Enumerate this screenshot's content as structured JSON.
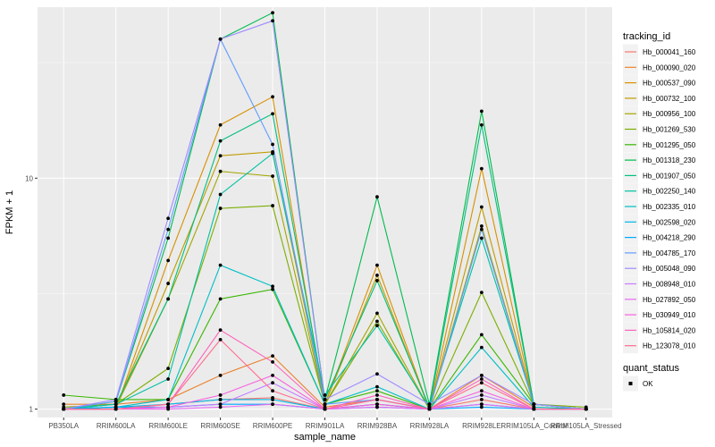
{
  "chart_data": {
    "type": "line",
    "title": "",
    "xlabel": "sample_name",
    "ylabel": "FPKM + 1",
    "y_scale": "log10",
    "ylim": [
      0.92,
      55
    ],
    "y_ticks": [
      1,
      10
    ],
    "y_tick_labels": [
      "1",
      "10"
    ],
    "grid": true,
    "panel_background": "#ebebeb",
    "legend_position": "right",
    "categories": [
      "PB350LA",
      "RRIM600LA",
      "RRIM600LE",
      "RRIM600SE",
      "RRIM600PE",
      "RRIM901LA",
      "RRIM928BA",
      "RRIM928LA",
      "RRIM928LE",
      "RRIM105LA_Control",
      "RRIM105LA_Stressed"
    ],
    "legend": {
      "title": "tracking_id",
      "items": [
        "Hb_000041_160",
        "Hb_000090_020",
        "Hb_000537_090",
        "Hb_000732_100",
        "Hb_000956_100",
        "Hb_001269_530",
        "Hb_001295_050",
        "Hb_001318_230",
        "Hb_001907_050",
        "Hb_002250_140",
        "Hb_002335_010",
        "Hb_002598_020",
        "Hb_004218_290",
        "Hb_004785_170",
        "Hb_005048_090",
        "Hb_008948_010",
        "Hb_027892_050",
        "Hb_030949_010",
        "Hb_105814_020",
        "Hb_123078_010"
      ]
    },
    "shape_legend": {
      "title": "quant_status",
      "items": [
        "OK"
      ]
    },
    "series": [
      {
        "name": "Hb_000041_160",
        "color": "#F8766D",
        "values": [
          1.0,
          1.0,
          1.05,
          1.1,
          1.12,
          1.0,
          1.05,
          1.0,
          1.1,
          1.0,
          1.0
        ]
      },
      {
        "name": "Hb_000090_020",
        "color": "#EA8331",
        "values": [
          1.05,
          1.05,
          1.1,
          1.4,
          1.7,
          1.02,
          1.1,
          1.0,
          1.4,
          1.02,
          1.0
        ]
      },
      {
        "name": "Hb_000537_090",
        "color": "#D89000",
        "values": [
          1.0,
          1.0,
          4.4,
          17.0,
          22.5,
          1.05,
          4.2,
          1.0,
          11.0,
          1.05,
          1.0
        ]
      },
      {
        "name": "Hb_000732_100",
        "color": "#C09B00",
        "values": [
          1.0,
          1.02,
          3.5,
          12.5,
          13.0,
          1.05,
          3.8,
          1.0,
          7.5,
          1.05,
          1.0
        ]
      },
      {
        "name": "Hb_000956_100",
        "color": "#A3A500",
        "values": [
          1.0,
          1.02,
          3.0,
          10.7,
          10.2,
          1.05,
          2.6,
          1.0,
          6.2,
          1.05,
          1.0
        ]
      },
      {
        "name": "Hb_001269_530",
        "color": "#7CAE00",
        "values": [
          1.02,
          1.05,
          1.5,
          7.4,
          7.6,
          1.05,
          2.4,
          1.0,
          3.2,
          1.05,
          1.02
        ]
      },
      {
        "name": "Hb_001295_050",
        "color": "#39B600",
        "values": [
          1.15,
          1.1,
          1.1,
          3.0,
          3.3,
          1.05,
          1.2,
          1.0,
          2.1,
          1.05,
          1.0
        ]
      },
      {
        "name": "Hb_001318_230",
        "color": "#00BB4E",
        "values": [
          1.0,
          1.08,
          5.5,
          40.0,
          52.0,
          1.1,
          8.3,
          1.05,
          19.5,
          1.05,
          1.0
        ]
      },
      {
        "name": "Hb_001907_050",
        "color": "#00BF7D",
        "values": [
          1.0,
          1.05,
          3.0,
          14.5,
          19.0,
          1.1,
          3.6,
          1.02,
          17.0,
          1.05,
          1.0
        ]
      },
      {
        "name": "Hb_002250_140",
        "color": "#00C1A3",
        "values": [
          1.0,
          1.05,
          1.35,
          8.5,
          12.8,
          1.15,
          2.3,
          1.02,
          5.5,
          1.05,
          1.0
        ]
      },
      {
        "name": "Hb_002335_010",
        "color": "#00BFC4",
        "values": [
          1.0,
          1.02,
          1.1,
          4.2,
          3.4,
          1.05,
          1.25,
          1.0,
          1.85,
          1.02,
          1.0
        ]
      },
      {
        "name": "Hb_002598_020",
        "color": "#00B8E7",
        "values": [
          1.0,
          1.02,
          1.05,
          1.1,
          1.1,
          1.0,
          1.05,
          1.0,
          1.05,
          1.0,
          1.0
        ]
      },
      {
        "name": "Hb_004218_290",
        "color": "#00A9FF",
        "values": [
          1.0,
          1.02,
          1.02,
          1.05,
          1.05,
          1.0,
          1.02,
          1.0,
          1.02,
          1.0,
          1.0
        ]
      },
      {
        "name": "Hb_004785_170",
        "color": "#619CFF",
        "values": [
          1.0,
          1.08,
          6.0,
          40.0,
          14.0,
          1.05,
          1.1,
          1.0,
          6.0,
          1.05,
          1.0
        ]
      },
      {
        "name": "Hb_005048_090",
        "color": "#9F8CFF",
        "values": [
          1.0,
          1.1,
          6.7,
          40.0,
          48.0,
          1.1,
          1.42,
          1.05,
          1.4,
          1.05,
          1.0
        ]
      },
      {
        "name": "Hb_008948_010",
        "color": "#C77CFF",
        "values": [
          1.0,
          1.0,
          1.02,
          1.05,
          1.3,
          1.0,
          1.1,
          1.0,
          1.15,
          1.0,
          1.0
        ]
      },
      {
        "name": "Hb_027892_050",
        "color": "#E76BF3",
        "values": [
          1.0,
          1.0,
          1.0,
          1.02,
          1.05,
          1.0,
          1.02,
          1.0,
          1.05,
          1.0,
          1.0
        ]
      },
      {
        "name": "Hb_030949_010",
        "color": "#F763E0",
        "values": [
          1.0,
          1.0,
          1.02,
          1.15,
          1.4,
          1.0,
          1.05,
          1.0,
          1.2,
          1.0,
          1.0
        ]
      },
      {
        "name": "Hb_105814_020",
        "color": "#FF62BC",
        "values": [
          1.0,
          1.0,
          1.05,
          2.2,
          1.6,
          1.0,
          1.15,
          1.0,
          1.35,
          1.0,
          1.0
        ]
      },
      {
        "name": "Hb_123078_010",
        "color": "#FF6C90",
        "values": [
          1.0,
          1.0,
          1.05,
          2.0,
          1.2,
          1.0,
          1.1,
          1.0,
          1.3,
          1.0,
          1.0
        ]
      }
    ]
  }
}
